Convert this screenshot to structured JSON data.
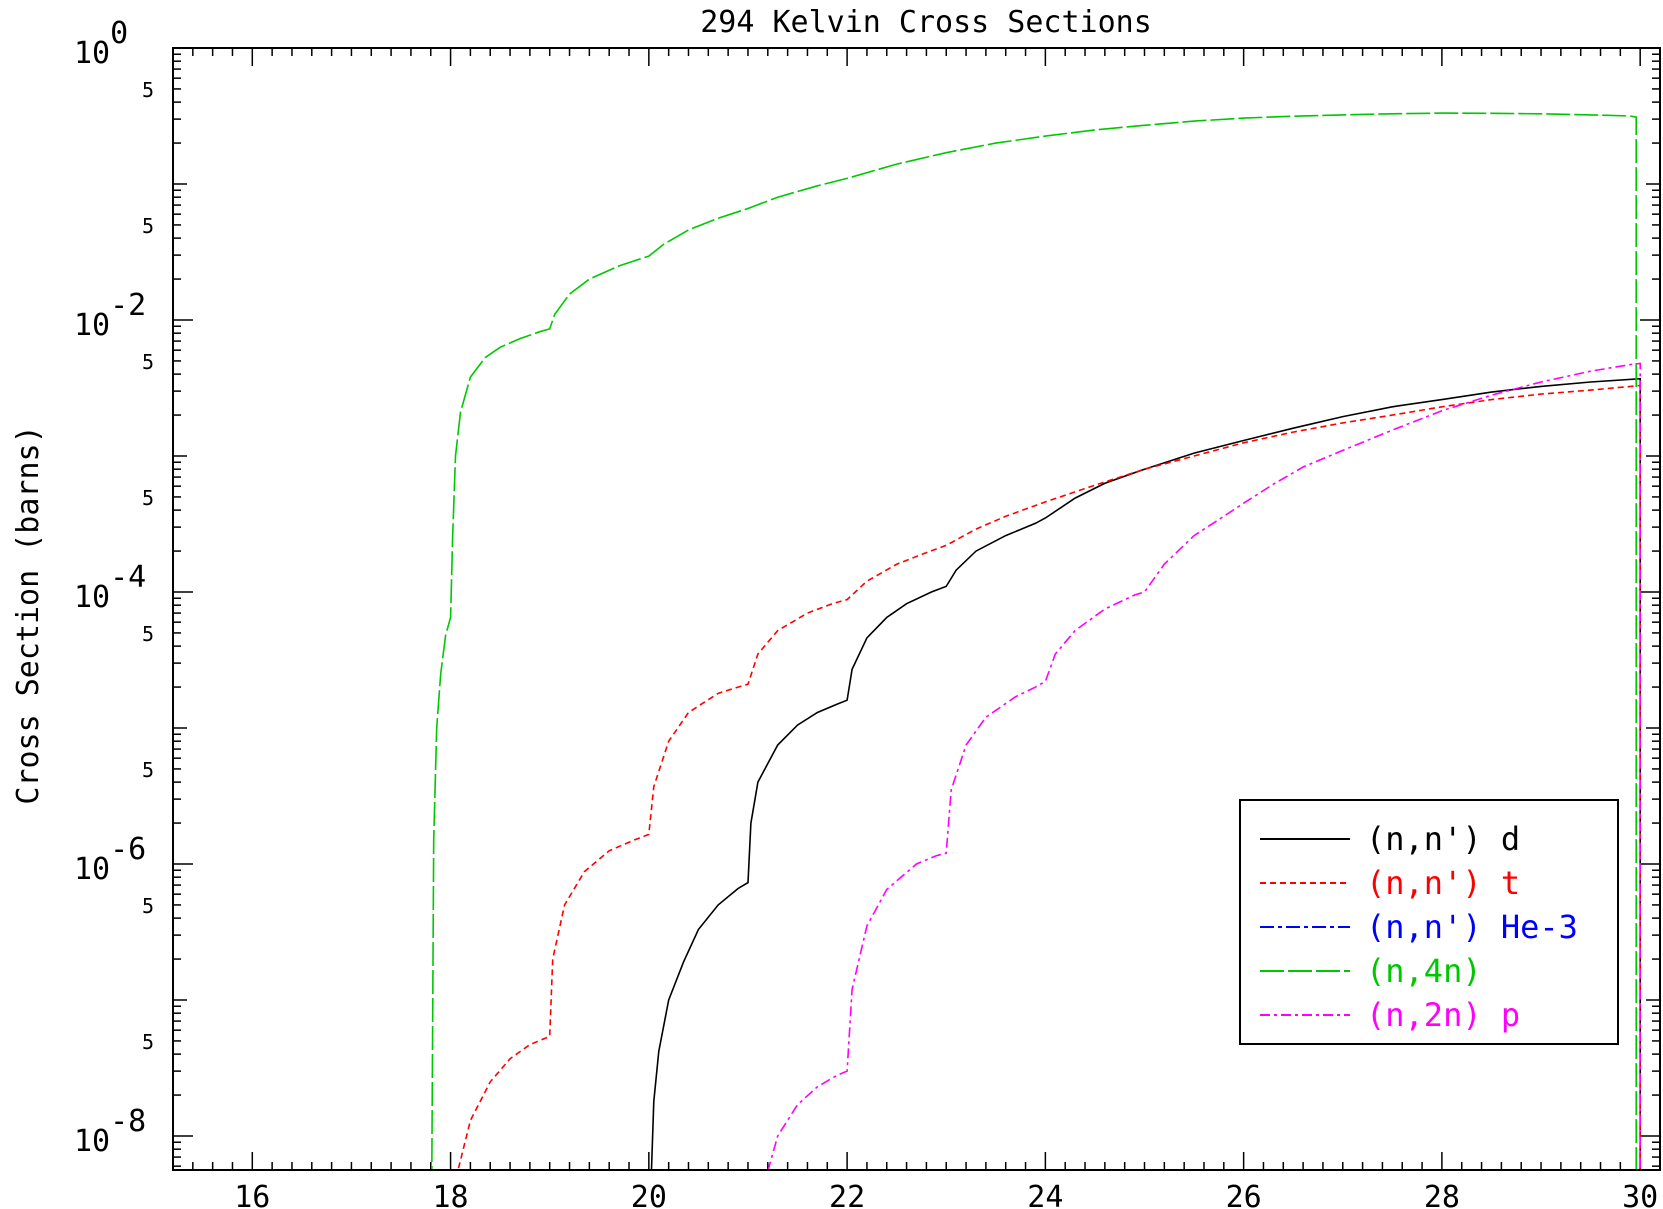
{
  "chart_data": {
    "type": "line",
    "title": "294 Kelvin Cross Sections",
    "xlabel": "",
    "ylabel": "Cross Section (barns)",
    "xlim": [
      15.2,
      30.2
    ],
    "ylim_log10": [
      -8.25,
      0.0
    ],
    "y_scale": "log",
    "x_ticks": [
      16,
      18,
      20,
      22,
      24,
      26,
      28,
      30
    ],
    "x_tick_labels": [
      "16",
      "18",
      "20",
      "22",
      "24",
      "26",
      "28",
      "30"
    ],
    "y_decades": [
      {
        "base": "10",
        "exp": "0",
        "value": 0
      },
      {
        "base": "10",
        "exp": "-2",
        "value": -2
      },
      {
        "base": "10",
        "exp": "-4",
        "value": -4
      },
      {
        "base": "10",
        "exp": "-6",
        "value": -6
      },
      {
        "base": "10",
        "exp": "-8",
        "value": -8
      }
    ],
    "y_minor_five_label": "5",
    "y_minor_five_values": [
      -0.301,
      -1.301,
      -2.301,
      -3.301,
      -4.301,
      -5.301,
      -6.301,
      -7.301
    ],
    "legend_position": "bottom-right",
    "series": [
      {
        "name": "(n,n') d",
        "color": "#000000",
        "dash": "",
        "x": [
          20.02,
          20.05,
          20.1,
          20.2,
          20.35,
          20.5,
          20.7,
          20.9,
          21.0,
          21.03,
          21.1,
          21.3,
          21.5,
          21.7,
          21.9,
          22.0,
          22.05,
          22.2,
          22.4,
          22.6,
          22.85,
          23.0,
          23.1,
          23.3,
          23.6,
          23.9,
          24.0,
          24.3,
          24.6,
          25.0,
          25.5,
          26.0,
          26.5,
          27.0,
          27.5,
          28.0,
          28.5,
          29.0,
          29.5,
          30.0
        ],
        "y": [
          0.0,
          1.8e-08,
          4.2e-08,
          1e-07,
          1.9e-07,
          3.3e-07,
          5e-07,
          6.6e-07,
          7.3e-07,
          2e-06,
          4e-06,
          7.5e-06,
          1.05e-05,
          1.3e-05,
          1.5e-05,
          1.6e-05,
          2.7e-05,
          4.6e-05,
          6.5e-05,
          8.2e-05,
          0.0001,
          0.00011,
          0.000145,
          0.0002,
          0.00026,
          0.00032,
          0.00035,
          0.00049,
          0.00063,
          0.0008,
          0.00105,
          0.0013,
          0.0016,
          0.00195,
          0.0023,
          0.0026,
          0.00295,
          0.00325,
          0.0035,
          0.0037
        ]
      },
      {
        "name": "(n,n') t",
        "color": "#ff0000",
        "dash": "6 4",
        "x": [
          18.08,
          18.2,
          18.4,
          18.6,
          18.8,
          19.0,
          19.03,
          19.15,
          19.35,
          19.6,
          19.85,
          20.0,
          20.05,
          20.2,
          20.4,
          20.7,
          20.9,
          21.0,
          21.1,
          21.3,
          21.6,
          21.85,
          22.0,
          22.2,
          22.5,
          22.8,
          23.0,
          23.3,
          23.6,
          24.0,
          24.5,
          25.0,
          25.5,
          26.0,
          26.5,
          27.0,
          27.5,
          28.0,
          28.5,
          29.0,
          29.5,
          30.0
        ],
        "y": [
          5.8e-09,
          1.3e-08,
          2.5e-08,
          3.7e-08,
          4.7e-08,
          5.4e-08,
          2e-07,
          5e-07,
          8.8e-07,
          1.25e-06,
          1.5e-06,
          1.65e-06,
          3.7e-06,
          8e-06,
          1.3e-05,
          1.8e-05,
          2e-05,
          2.1e-05,
          3.5e-05,
          5.2e-05,
          7e-05,
          8.2e-05,
          8.8e-05,
          0.00012,
          0.00016,
          0.000195,
          0.00022,
          0.00029,
          0.00036,
          0.00046,
          0.00061,
          0.0008,
          0.001,
          0.00125,
          0.0015,
          0.00175,
          0.002,
          0.0023,
          0.0026,
          0.00285,
          0.00305,
          0.0033
        ]
      },
      {
        "name": "(n,n') He-3",
        "color": "#0000ff",
        "dash": "14 4 4 4",
        "x": [],
        "y": []
      },
      {
        "name": "(n,4n)",
        "color": "#00c800",
        "dash": "24 4",
        "x": [
          17.81,
          17.83,
          17.86,
          17.9,
          17.95,
          18.0,
          18.02,
          18.05,
          18.1,
          18.2,
          18.35,
          18.5,
          18.7,
          18.9,
          19.0,
          19.05,
          19.2,
          19.4,
          19.7,
          20.0,
          20.15,
          20.4,
          20.7,
          21.0,
          21.3,
          21.7,
          22.0,
          22.5,
          23.0,
          23.5,
          24.0,
          24.5,
          25.0,
          25.5,
          26.0,
          26.5,
          27.0,
          27.5,
          28.0,
          28.5,
          29.0,
          29.5,
          29.9,
          29.96
        ],
        "y": [
          0.0,
          1.5e-06,
          1e-05,
          2.5e-05,
          4.8e-05,
          6.5e-05,
          0.00025,
          0.001,
          0.0021,
          0.0038,
          0.0053,
          0.0063,
          0.0073,
          0.0082,
          0.0086,
          0.011,
          0.0155,
          0.02,
          0.025,
          0.0295,
          0.036,
          0.046,
          0.056,
          0.066,
          0.08,
          0.097,
          0.11,
          0.14,
          0.17,
          0.2,
          0.225,
          0.25,
          0.27,
          0.29,
          0.305,
          0.315,
          0.322,
          0.328,
          0.332,
          0.331,
          0.328,
          0.322,
          0.316,
          0.31
        ]
      },
      {
        "name": "(n,2n) p",
        "color": "#ff00ff",
        "dash": "10 4 3 4",
        "x": [
          21.2,
          21.3,
          21.5,
          21.7,
          21.9,
          22.0,
          22.05,
          22.2,
          22.4,
          22.7,
          22.9,
          23.0,
          23.05,
          23.2,
          23.4,
          23.7,
          23.9,
          24.0,
          24.1,
          24.3,
          24.6,
          24.9,
          25.0,
          25.2,
          25.5,
          25.8,
          26.0,
          26.3,
          26.6,
          27.0,
          27.5,
          28.0,
          28.5,
          29.0,
          29.5,
          29.9,
          30.0
        ],
        "y": [
          5.5e-09,
          1e-08,
          1.7e-08,
          2.3e-08,
          2.8e-08,
          3e-08,
          1.2e-07,
          3.5e-07,
          6.5e-07,
          1e-06,
          1.15e-06,
          1.2e-06,
          3.5e-06,
          7.5e-06,
          1.2e-05,
          1.7e-05,
          2e-05,
          2.2e-05,
          3.5e-05,
          5.2e-05,
          7.5e-05,
          9.5e-05,
          0.0001,
          0.00016,
          0.00026,
          0.00036,
          0.00045,
          0.00062,
          0.00083,
          0.0011,
          0.00155,
          0.00215,
          0.0028,
          0.0035,
          0.0042,
          0.0047,
          0.0048
        ]
      }
    ]
  }
}
